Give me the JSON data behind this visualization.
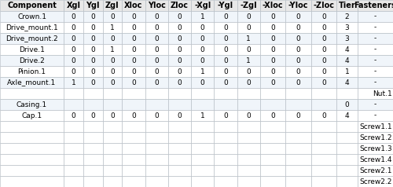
{
  "headers": [
    "Component",
    "Xgl",
    "Ygl",
    "Zgl",
    "Xloc",
    "Yloc",
    "Zloc",
    "-Xgl",
    "-Ygl",
    "-Zgl",
    "-Xloc",
    "-Yloc",
    "-Zloc",
    "Tier",
    "Fasteners"
  ],
  "rows": [
    [
      "Crown.1",
      "0",
      "0",
      "0",
      "0",
      "0",
      "0",
      "1",
      "0",
      "0",
      "0",
      "0",
      "0",
      "2",
      "-"
    ],
    [
      "Drive_mount.1",
      "0",
      "0",
      "1",
      "0",
      "0",
      "0",
      "0",
      "0",
      "0",
      "0",
      "0",
      "0",
      "3",
      "-"
    ],
    [
      "Drive_mount.2",
      "0",
      "0",
      "0",
      "0",
      "0",
      "0",
      "0",
      "0",
      "1",
      "0",
      "0",
      "0",
      "3",
      "-"
    ],
    [
      "Drive.1",
      "0",
      "0",
      "1",
      "0",
      "0",
      "0",
      "0",
      "0",
      "0",
      "0",
      "0",
      "0",
      "4",
      "-"
    ],
    [
      "Drive.2",
      "0",
      "0",
      "0",
      "0",
      "0",
      "0",
      "0",
      "0",
      "1",
      "0",
      "0",
      "0",
      "4",
      "-"
    ],
    [
      "Pinion.1",
      "0",
      "0",
      "0",
      "0",
      "0",
      "0",
      "1",
      "0",
      "0",
      "0",
      "0",
      "0",
      "1",
      "-"
    ],
    [
      "Axle_mount.1",
      "1",
      "0",
      "0",
      "0",
      "0",
      "0",
      "0",
      "0",
      "0",
      "0",
      "0",
      "0",
      "4",
      "-"
    ],
    [
      "",
      "",
      "",
      "",
      "",
      "",
      "",
      "",
      "",
      "",
      "",
      "",
      "",
      "",
      "Nut.1"
    ],
    [
      "Casing.1",
      "",
      "",
      "",
      "",
      "",
      "",
      "",
      "",
      "",
      "",
      "",
      "",
      "0",
      "-"
    ],
    [
      "Cap.1",
      "0",
      "0",
      "0",
      "0",
      "0",
      "0",
      "1",
      "0",
      "0",
      "0",
      "0",
      "0",
      "4",
      "-"
    ],
    [
      "",
      "",
      "",
      "",
      "",
      "",
      "",
      "",
      "",
      "",
      "",
      "",
      "",
      "",
      "Screw1.1"
    ],
    [
      "",
      "",
      "",
      "",
      "",
      "",
      "",
      "",
      "",
      "",
      "",
      "",
      "",
      "",
      "Screw1.2"
    ],
    [
      "",
      "",
      "",
      "",
      "",
      "",
      "",
      "",
      "",
      "",
      "",
      "",
      "",
      "",
      "Screw1.3"
    ],
    [
      "",
      "",
      "",
      "",
      "",
      "",
      "",
      "",
      "",
      "",
      "",
      "",
      "",
      "",
      "Screw1.4"
    ],
    [
      "",
      "",
      "",
      "",
      "",
      "",
      "",
      "",
      "",
      "",
      "",
      "",
      "",
      "",
      "Screw2.1"
    ],
    [
      "",
      "",
      "",
      "",
      "",
      "",
      "",
      "",
      "",
      "",
      "",
      "",
      "",
      "",
      "Screw2.2"
    ]
  ],
  "col_widths_rel": [
    1.8,
    0.55,
    0.55,
    0.55,
    0.65,
    0.65,
    0.65,
    0.65,
    0.65,
    0.65,
    0.72,
    0.72,
    0.72,
    0.6,
    1.0
  ],
  "header_bg": "#e8e8e8",
  "cell_bg_white": "#ffffff",
  "cell_bg_light": "#f0f5fa",
  "border_color": "#b0b8c0",
  "text_color": "#000000",
  "font_size": 6.5,
  "header_font_size": 7.0,
  "fig_width": 5.0,
  "fig_height": 2.38,
  "dpi": 100
}
